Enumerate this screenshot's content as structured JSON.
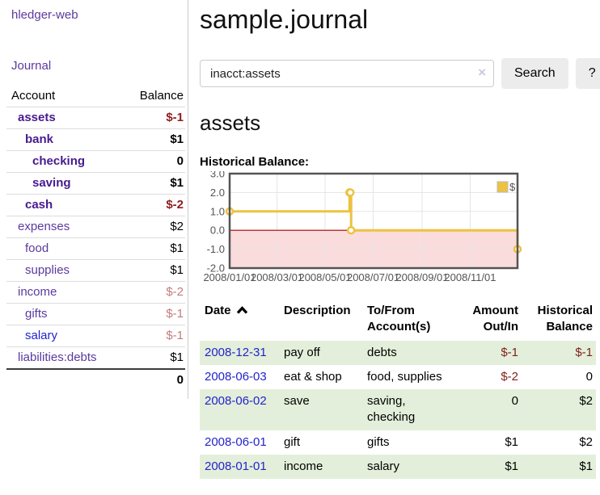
{
  "app": {
    "brand": "hledger-web",
    "nav_journal": "Journal"
  },
  "sidebar": {
    "table_headers": {
      "account": "Account",
      "balance": "Balance"
    },
    "accounts": [
      {
        "name": "assets",
        "level": 1,
        "bold": true,
        "balance": "$-1"
      },
      {
        "name": "bank",
        "level": 2,
        "bold": true,
        "balance": "$1"
      },
      {
        "name": "checking",
        "level": 3,
        "bold": true,
        "balance": "0"
      },
      {
        "name": "saving",
        "level": 3,
        "bold": true,
        "balance": "$1"
      },
      {
        "name": "cash",
        "level": 2,
        "bold": true,
        "balance": "$-2"
      },
      {
        "name": "expenses",
        "level": 1,
        "bold": false,
        "balance": "$2"
      },
      {
        "name": "food",
        "level": 2,
        "bold": false,
        "balance": "$1"
      },
      {
        "name": "supplies",
        "level": 2,
        "bold": false,
        "balance": "$1"
      },
      {
        "name": "income",
        "level": 1,
        "bold": false,
        "balance": "$-2"
      },
      {
        "name": "gifts",
        "level": 2,
        "bold": false,
        "balance": "$-1"
      },
      {
        "name": "salary",
        "level": 2,
        "bold": false,
        "balance": "$-1",
        "unvisited": true
      },
      {
        "name": "liabilities:debts",
        "level": 1,
        "bold": false,
        "balance": "$1"
      }
    ],
    "total": "0"
  },
  "header": {
    "title": "sample.journal"
  },
  "search": {
    "value": "inacct:assets",
    "clear_icon": "×",
    "button_label": "Search",
    "help_label": "?"
  },
  "account_page": {
    "heading": "assets",
    "chart_title": "Historical Balance:"
  },
  "chart_data": {
    "type": "line",
    "step": true,
    "series": [
      {
        "name": "$",
        "color": "#edc240",
        "points": [
          [
            "2008-01-01",
            1
          ],
          [
            "2008-06-01",
            2
          ],
          [
            "2008-06-02",
            2
          ],
          [
            "2008-06-03",
            0
          ],
          [
            "2008-12-31",
            -1
          ]
        ]
      }
    ],
    "x_ticks": [
      "2008/01/01",
      "2008/03/01",
      "2008/05/01",
      "2008/07/01",
      "2008/09/01",
      "2008/11/01"
    ],
    "y_ticks": [
      "3.0",
      "2.0",
      "1.0",
      "0.0",
      "-1.0",
      "-2.0"
    ],
    "ylim": [
      -2,
      3
    ],
    "xlim": [
      "2008/01/01",
      "2008/12/31"
    ],
    "legend": "$",
    "legend_position": "top-right",
    "grid": true,
    "colors": {
      "line": "#edc240",
      "marker_fill": "#ffffff",
      "border": "#545454",
      "gridline": "#e5e5e5",
      "zero_line": "#a40000",
      "negative_region": "#fbdcdc",
      "tick_label": "#545454"
    }
  },
  "register": {
    "headers": {
      "date": "Date",
      "description": "Description",
      "to_from": "To/From\nAccount(s)",
      "amount": "Amount\nOut/In",
      "balance": "Historical\nBalance"
    },
    "sort_icon": "chevron-up",
    "rows": [
      {
        "date": "2008-12-31",
        "description": "pay off",
        "to_from": "debts",
        "amount": "$-1",
        "balance": "$-1"
      },
      {
        "date": "2008-06-03",
        "description": "eat & shop",
        "to_from": "food, supplies",
        "amount": "$-2",
        "balance": "0"
      },
      {
        "date": "2008-06-02",
        "description": "save",
        "to_from": "saving,\nchecking",
        "amount": "0",
        "balance": "$2"
      },
      {
        "date": "2008-06-01",
        "description": "gift",
        "to_from": "gifts",
        "amount": "$1",
        "balance": "$2"
      },
      {
        "date": "2008-01-01",
        "description": "income",
        "to_from": "salary",
        "amount": "$1",
        "balance": "$1"
      }
    ]
  }
}
